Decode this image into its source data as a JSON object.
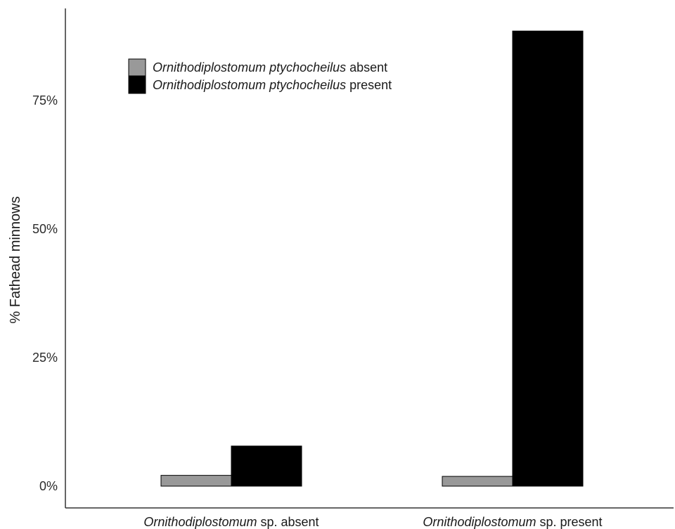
{
  "chart_data": {
    "type": "bar",
    "ylabel": "% Fathead minnows",
    "ylim": [
      0,
      90
    ],
    "y_ticks": [
      {
        "value": 0,
        "label": "0%"
      },
      {
        "value": 25,
        "label": "25%"
      },
      {
        "value": 50,
        "label": "50%"
      },
      {
        "value": 75,
        "label": "75%"
      }
    ],
    "categories": [
      {
        "italic": "Ornithodiplostomum",
        "rest": " sp. absent"
      },
      {
        "italic": "Ornithodiplostomum",
        "rest": " sp. present"
      }
    ],
    "series": [
      {
        "name_italic": "Ornithodiplostomum ptychocheilus",
        "name_rest": " absent",
        "color": "#999999",
        "values": [
          2.1,
          1.9
        ]
      },
      {
        "name_italic": "Ornithodiplostomum ptychocheilus",
        "name_rest": " present",
        "color": "#000000",
        "values": [
          7.8,
          88.5
        ]
      }
    ],
    "legend_position": "top-left",
    "grid": false
  }
}
